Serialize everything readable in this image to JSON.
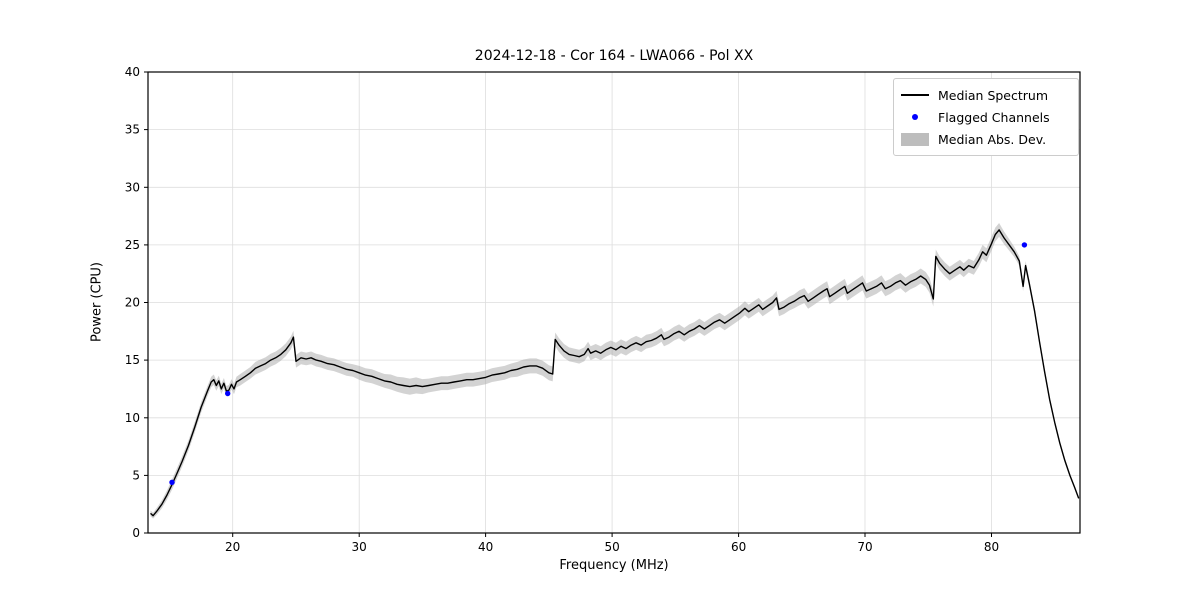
{
  "chart_data": {
    "type": "line",
    "title": "2024-12-18 - Cor 164 - LWA066 - Pol XX",
    "xlabel": "Frequency (MHz)",
    "ylabel": "Power (CPU)",
    "axes": {
      "xlim": [
        13.3,
        87.0
      ],
      "ylim": [
        0,
        40
      ],
      "xticks": [
        20,
        30,
        40,
        50,
        60,
        70,
        80
      ],
      "yticks": [
        0,
        5,
        10,
        15,
        20,
        25,
        30,
        35,
        40
      ],
      "grid": true
    },
    "colors": {
      "median_line": "#000000",
      "flagged": "#0000ff",
      "mad_band": "#a8a8a8",
      "grid": "#dddddd",
      "spine": "#000000"
    },
    "legend": {
      "position": "upper right",
      "items": [
        {
          "label": "Median Spectrum",
          "type": "line"
        },
        {
          "label": "Flagged Channels",
          "type": "dot"
        },
        {
          "label": "Median Abs. Dev.",
          "type": "patch"
        }
      ]
    },
    "series": [
      {
        "name": "Median Spectrum",
        "points_fpm": [
          [
            13.5,
            1.7,
            0.25
          ],
          [
            13.7,
            1.5,
            0.25
          ],
          [
            14.0,
            1.9,
            0.3
          ],
          [
            14.4,
            2.5,
            0.35
          ],
          [
            14.8,
            3.3,
            0.4
          ],
          [
            15.2,
            4.2,
            0.45
          ],
          [
            15.6,
            5.2,
            0.45
          ],
          [
            16.0,
            6.2,
            0.45
          ],
          [
            16.5,
            7.6,
            0.45
          ],
          [
            17.0,
            9.2,
            0.45
          ],
          [
            17.5,
            10.9,
            0.45
          ],
          [
            18.0,
            12.3,
            0.45
          ],
          [
            18.3,
            13.1,
            0.45
          ],
          [
            18.5,
            13.3,
            0.45
          ],
          [
            18.7,
            12.8,
            0.45
          ],
          [
            18.9,
            13.2,
            0.45
          ],
          [
            19.1,
            12.5,
            0.45
          ],
          [
            19.3,
            13.0,
            0.45
          ],
          [
            19.5,
            12.3,
            0.45
          ],
          [
            19.7,
            12.4,
            0.45
          ],
          [
            19.9,
            12.9,
            0.45
          ],
          [
            20.1,
            12.5,
            0.45
          ],
          [
            20.3,
            13.1,
            0.45
          ],
          [
            20.6,
            13.3,
            0.5
          ],
          [
            21.0,
            13.6,
            0.5
          ],
          [
            21.4,
            13.9,
            0.5
          ],
          [
            21.8,
            14.3,
            0.55
          ],
          [
            22.2,
            14.5,
            0.55
          ],
          [
            22.6,
            14.7,
            0.55
          ],
          [
            23.0,
            15.0,
            0.55
          ],
          [
            23.4,
            15.2,
            0.55
          ],
          [
            23.8,
            15.5,
            0.55
          ],
          [
            24.2,
            15.9,
            0.55
          ],
          [
            24.6,
            16.5,
            0.55
          ],
          [
            24.8,
            17.0,
            0.55
          ],
          [
            25.0,
            14.9,
            0.55
          ],
          [
            25.4,
            15.2,
            0.55
          ],
          [
            25.8,
            15.1,
            0.55
          ],
          [
            26.2,
            15.2,
            0.55
          ],
          [
            26.6,
            15.0,
            0.55
          ],
          [
            27.0,
            14.9,
            0.55
          ],
          [
            27.5,
            14.7,
            0.55
          ],
          [
            28.0,
            14.6,
            0.55
          ],
          [
            28.5,
            14.4,
            0.55
          ],
          [
            29.0,
            14.2,
            0.55
          ],
          [
            29.5,
            14.1,
            0.55
          ],
          [
            30.0,
            13.9,
            0.6
          ],
          [
            30.5,
            13.7,
            0.6
          ],
          [
            31.0,
            13.6,
            0.6
          ],
          [
            31.5,
            13.4,
            0.6
          ],
          [
            32.0,
            13.2,
            0.6
          ],
          [
            32.5,
            13.1,
            0.65
          ],
          [
            33.0,
            12.9,
            0.65
          ],
          [
            33.5,
            12.8,
            0.7
          ],
          [
            34.0,
            12.7,
            0.7
          ],
          [
            34.5,
            12.8,
            0.7
          ],
          [
            35.0,
            12.7,
            0.65
          ],
          [
            35.5,
            12.8,
            0.6
          ],
          [
            36.0,
            12.9,
            0.6
          ],
          [
            36.5,
            13.0,
            0.6
          ],
          [
            37.0,
            13.0,
            0.6
          ],
          [
            37.5,
            13.1,
            0.6
          ],
          [
            38.0,
            13.2,
            0.6
          ],
          [
            38.5,
            13.3,
            0.6
          ],
          [
            39.0,
            13.3,
            0.6
          ],
          [
            39.5,
            13.4,
            0.6
          ],
          [
            40.0,
            13.5,
            0.6
          ],
          [
            40.5,
            13.7,
            0.6
          ],
          [
            41.0,
            13.8,
            0.6
          ],
          [
            41.5,
            13.9,
            0.6
          ],
          [
            42.0,
            14.1,
            0.6
          ],
          [
            42.5,
            14.2,
            0.65
          ],
          [
            43.0,
            14.4,
            0.65
          ],
          [
            43.5,
            14.5,
            0.65
          ],
          [
            44.0,
            14.5,
            0.65
          ],
          [
            44.5,
            14.3,
            0.65
          ],
          [
            45.0,
            13.9,
            0.65
          ],
          [
            45.3,
            13.8,
            0.65
          ],
          [
            45.5,
            16.8,
            0.6
          ],
          [
            45.8,
            16.3,
            0.6
          ],
          [
            46.2,
            15.8,
            0.6
          ],
          [
            46.6,
            15.5,
            0.6
          ],
          [
            47.0,
            15.4,
            0.6
          ],
          [
            47.4,
            15.3,
            0.6
          ],
          [
            47.8,
            15.5,
            0.6
          ],
          [
            48.1,
            16.0,
            0.6
          ],
          [
            48.3,
            15.6,
            0.6
          ],
          [
            48.7,
            15.8,
            0.6
          ],
          [
            49.1,
            15.6,
            0.6
          ],
          [
            49.5,
            15.9,
            0.6
          ],
          [
            49.9,
            16.1,
            0.6
          ],
          [
            50.3,
            15.9,
            0.6
          ],
          [
            50.7,
            16.2,
            0.6
          ],
          [
            51.1,
            16.0,
            0.6
          ],
          [
            51.5,
            16.3,
            0.6
          ],
          [
            51.9,
            16.5,
            0.6
          ],
          [
            52.3,
            16.3,
            0.6
          ],
          [
            52.7,
            16.6,
            0.6
          ],
          [
            53.1,
            16.7,
            0.6
          ],
          [
            53.5,
            16.9,
            0.6
          ],
          [
            53.9,
            17.2,
            0.6
          ],
          [
            54.1,
            16.8,
            0.6
          ],
          [
            54.5,
            17.0,
            0.6
          ],
          [
            54.9,
            17.3,
            0.6
          ],
          [
            55.3,
            17.5,
            0.6
          ],
          [
            55.7,
            17.2,
            0.6
          ],
          [
            56.1,
            17.5,
            0.6
          ],
          [
            56.5,
            17.7,
            0.6
          ],
          [
            56.9,
            18.0,
            0.6
          ],
          [
            57.3,
            17.7,
            0.6
          ],
          [
            57.7,
            18.0,
            0.6
          ],
          [
            58.1,
            18.3,
            0.6
          ],
          [
            58.5,
            18.5,
            0.6
          ],
          [
            58.9,
            18.2,
            0.6
          ],
          [
            59.3,
            18.5,
            0.6
          ],
          [
            59.7,
            18.8,
            0.6
          ],
          [
            60.1,
            19.1,
            0.6
          ],
          [
            60.5,
            19.5,
            0.6
          ],
          [
            60.8,
            19.2,
            0.6
          ],
          [
            61.2,
            19.5,
            0.6
          ],
          [
            61.6,
            19.8,
            0.6
          ],
          [
            61.9,
            19.4,
            0.6
          ],
          [
            62.3,
            19.7,
            0.6
          ],
          [
            62.7,
            20.0,
            0.6
          ],
          [
            63.0,
            20.4,
            0.6
          ],
          [
            63.2,
            19.4,
            0.6
          ],
          [
            63.6,
            19.6,
            0.6
          ],
          [
            64.0,
            19.9,
            0.6
          ],
          [
            64.4,
            20.1,
            0.6
          ],
          [
            64.8,
            20.4,
            0.65
          ],
          [
            65.2,
            20.6,
            0.65
          ],
          [
            65.5,
            20.1,
            0.65
          ],
          [
            65.9,
            20.4,
            0.65
          ],
          [
            66.3,
            20.7,
            0.65
          ],
          [
            66.7,
            21.0,
            0.65
          ],
          [
            67.0,
            21.2,
            0.65
          ],
          [
            67.2,
            20.5,
            0.65
          ],
          [
            67.6,
            20.8,
            0.65
          ],
          [
            68.0,
            21.1,
            0.65
          ],
          [
            68.4,
            21.4,
            0.65
          ],
          [
            68.6,
            20.8,
            0.65
          ],
          [
            69.0,
            21.1,
            0.65
          ],
          [
            69.4,
            21.4,
            0.65
          ],
          [
            69.8,
            21.7,
            0.65
          ],
          [
            70.1,
            21.0,
            0.65
          ],
          [
            70.5,
            21.2,
            0.65
          ],
          [
            70.9,
            21.4,
            0.65
          ],
          [
            71.3,
            21.7,
            0.65
          ],
          [
            71.6,
            21.2,
            0.65
          ],
          [
            72.0,
            21.4,
            0.65
          ],
          [
            72.4,
            21.7,
            0.65
          ],
          [
            72.8,
            21.9,
            0.65
          ],
          [
            73.2,
            21.5,
            0.65
          ],
          [
            73.6,
            21.8,
            0.65
          ],
          [
            74.0,
            22.0,
            0.65
          ],
          [
            74.4,
            22.3,
            0.65
          ],
          [
            74.8,
            22.0,
            0.65
          ],
          [
            75.1,
            21.5,
            0.65
          ],
          [
            75.4,
            20.3,
            0.65
          ],
          [
            75.6,
            24.0,
            0.6
          ],
          [
            75.9,
            23.4,
            0.6
          ],
          [
            76.3,
            22.9,
            0.6
          ],
          [
            76.7,
            22.5,
            0.6
          ],
          [
            77.1,
            22.8,
            0.6
          ],
          [
            77.5,
            23.1,
            0.6
          ],
          [
            77.8,
            22.8,
            0.6
          ],
          [
            78.2,
            23.2,
            0.6
          ],
          [
            78.6,
            23.0,
            0.6
          ],
          [
            79.0,
            23.7,
            0.6
          ],
          [
            79.3,
            24.4,
            0.6
          ],
          [
            79.6,
            24.1,
            0.6
          ],
          [
            80.0,
            25.1,
            0.6
          ],
          [
            80.3,
            25.9,
            0.6
          ],
          [
            80.6,
            26.3,
            0.6
          ],
          [
            81.0,
            25.6,
            0.55
          ],
          [
            81.4,
            25.0,
            0.5
          ],
          [
            81.8,
            24.4,
            0.45
          ],
          [
            82.2,
            23.6,
            0.4
          ],
          [
            82.5,
            21.4,
            0.4
          ],
          [
            82.7,
            23.2,
            0.4
          ],
          [
            83.0,
            21.6,
            0.35
          ],
          [
            83.4,
            19.3,
            0.3
          ],
          [
            83.8,
            16.6,
            0.3
          ],
          [
            84.2,
            14.0,
            0.25
          ],
          [
            84.6,
            11.6,
            0.25
          ],
          [
            85.0,
            9.6,
            0.2
          ],
          [
            85.4,
            7.8,
            0.2
          ],
          [
            85.8,
            6.3,
            0.2
          ],
          [
            86.2,
            5.0,
            0.15
          ],
          [
            86.6,
            3.9,
            0.15
          ],
          [
            86.9,
            3.0,
            0.1
          ]
        ]
      },
      {
        "name": "Flagged Channels",
        "points": [
          [
            15.2,
            4.4
          ],
          [
            19.6,
            12.1
          ],
          [
            82.6,
            25.0
          ]
        ]
      }
    ]
  }
}
